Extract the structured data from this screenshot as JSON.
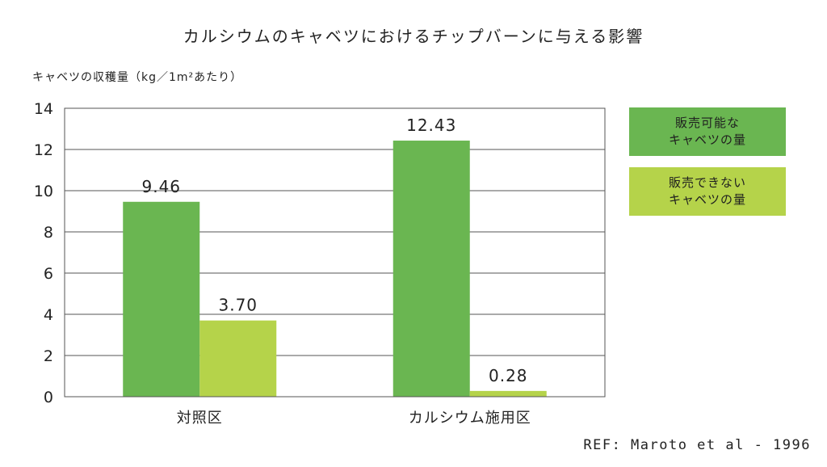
{
  "chart_data": {
    "type": "bar",
    "title": "カルシウムのキャベツにおけるチップバーンに与える影響",
    "ylabel": "キャベツの収穫量（kg／1m²あたり）",
    "xlabel": "",
    "categories": [
      "対照区",
      "カルシウム施用区"
    ],
    "ylim": [
      0,
      14
    ],
    "yticks": [
      0,
      2,
      4,
      6,
      8,
      10,
      12,
      14
    ],
    "grid": true,
    "legend_position": "right",
    "series": [
      {
        "name": "販売可能なキャベツの量",
        "legend_lines": [
          "販売可能な",
          "キャベツの量"
        ],
        "values": [
          9.46,
          12.43
        ],
        "labels": [
          "9.46",
          "12.43"
        ],
        "color": "#6ab651"
      },
      {
        "name": "販売できないキャベツの量",
        "legend_lines": [
          "販売できない",
          "キャベツの量"
        ],
        "values": [
          3.7,
          0.28
        ],
        "labels": [
          "3.70",
          "0.28"
        ],
        "color": "#b5d34a"
      }
    ]
  },
  "source": "REF: Maroto et al - 1996"
}
